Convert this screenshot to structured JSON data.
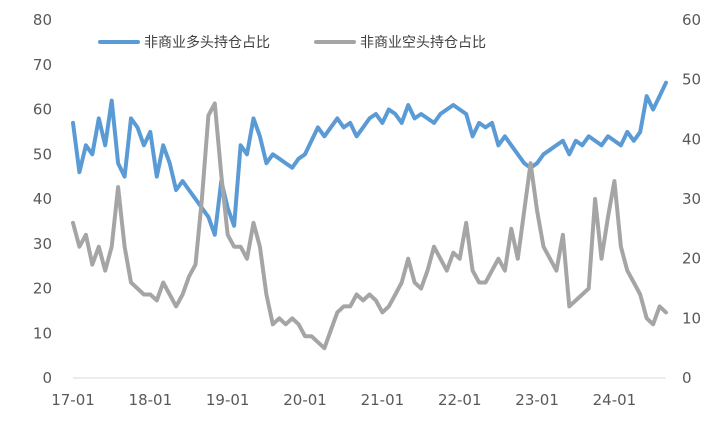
{
  "chart_data": {
    "type": "line",
    "title": "",
    "left_axis": {
      "ylim": [
        0,
        80
      ],
      "ticks": [
        "0",
        "10",
        "20",
        "30",
        "40",
        "50",
        "60",
        "70",
        "80"
      ]
    },
    "right_axis": {
      "ylim": [
        0,
        60
      ],
      "ticks": [
        "0",
        "10",
        "20",
        "30",
        "40",
        "50",
        "60"
      ]
    },
    "x_axis": {
      "xlim": [
        "2017-01",
        "2024-09"
      ],
      "ticks": [
        {
          "date": "2017-01",
          "label": "17-01"
        },
        {
          "date": "2018-01",
          "label": "18-01"
        },
        {
          "date": "2019-01",
          "label": "19-01"
        },
        {
          "date": "2020-01",
          "label": "20-01"
        },
        {
          "date": "2021-01",
          "label": "21-01"
        },
        {
          "date": "2022-01",
          "label": "22-01"
        },
        {
          "date": "2023-01",
          "label": "23-01"
        },
        {
          "date": "2024-01",
          "label": "24-01"
        }
      ]
    },
    "grid": false,
    "legend_position": "top-left",
    "series": [
      {
        "name": "非商业多头持仓占比",
        "axis": "left",
        "color": "#5B9BD5",
        "points": [
          [
            "2017-01",
            57
          ],
          [
            "2017-02",
            46
          ],
          [
            "2017-03",
            52
          ],
          [
            "2017-04",
            50
          ],
          [
            "2017-05",
            58
          ],
          [
            "2017-06",
            52
          ],
          [
            "2017-07",
            62
          ],
          [
            "2017-08",
            48
          ],
          [
            "2017-09",
            45
          ],
          [
            "2017-10",
            58
          ],
          [
            "2017-11",
            56
          ],
          [
            "2017-12",
            52
          ],
          [
            "2018-01",
            55
          ],
          [
            "2018-02",
            45
          ],
          [
            "2018-03",
            52
          ],
          [
            "2018-04",
            48
          ],
          [
            "2018-05",
            42
          ],
          [
            "2018-06",
            44
          ],
          [
            "2018-07",
            42
          ],
          [
            "2018-08",
            40
          ],
          [
            "2018-09",
            38
          ],
          [
            "2018-10",
            36
          ],
          [
            "2018-11",
            32
          ],
          [
            "2018-12",
            44
          ],
          [
            "2019-01",
            38
          ],
          [
            "2019-02",
            34
          ],
          [
            "2019-03",
            52
          ],
          [
            "2019-04",
            50
          ],
          [
            "2019-05",
            58
          ],
          [
            "2019-06",
            54
          ],
          [
            "2019-07",
            48
          ],
          [
            "2019-08",
            50
          ],
          [
            "2019-09",
            49
          ],
          [
            "2019-10",
            48
          ],
          [
            "2019-11",
            47
          ],
          [
            "2019-12",
            49
          ],
          [
            "2020-01",
            50
          ],
          [
            "2020-02",
            53
          ],
          [
            "2020-03",
            56
          ],
          [
            "2020-04",
            54
          ],
          [
            "2020-05",
            56
          ],
          [
            "2020-06",
            58
          ],
          [
            "2020-07",
            56
          ],
          [
            "2020-08",
            57
          ],
          [
            "2020-09",
            54
          ],
          [
            "2020-10",
            56
          ],
          [
            "2020-11",
            58
          ],
          [
            "2020-12",
            59
          ],
          [
            "2021-01",
            57
          ],
          [
            "2021-02",
            60
          ],
          [
            "2021-03",
            59
          ],
          [
            "2021-04",
            57
          ],
          [
            "2021-05",
            61
          ],
          [
            "2021-06",
            58
          ],
          [
            "2021-07",
            59
          ],
          [
            "2021-08",
            58
          ],
          [
            "2021-09",
            57
          ],
          [
            "2021-10",
            59
          ],
          [
            "2021-11",
            60
          ],
          [
            "2021-12",
            61
          ],
          [
            "2022-01",
            60
          ],
          [
            "2022-02",
            59
          ],
          [
            "2022-03",
            54
          ],
          [
            "2022-04",
            57
          ],
          [
            "2022-05",
            56
          ],
          [
            "2022-06",
            57
          ],
          [
            "2022-07",
            52
          ],
          [
            "2022-08",
            54
          ],
          [
            "2022-09",
            52
          ],
          [
            "2022-10",
            50
          ],
          [
            "2022-11",
            48
          ],
          [
            "2022-12",
            47
          ],
          [
            "2023-01",
            48
          ],
          [
            "2023-02",
            50
          ],
          [
            "2023-03",
            51
          ],
          [
            "2023-04",
            52
          ],
          [
            "2023-05",
            53
          ],
          [
            "2023-06",
            50
          ],
          [
            "2023-07",
            53
          ],
          [
            "2023-08",
            52
          ],
          [
            "2023-09",
            54
          ],
          [
            "2023-10",
            53
          ],
          [
            "2023-11",
            52
          ],
          [
            "2023-12",
            54
          ],
          [
            "2024-01",
            53
          ],
          [
            "2024-02",
            52
          ],
          [
            "2024-03",
            55
          ],
          [
            "2024-04",
            53
          ],
          [
            "2024-05",
            55
          ],
          [
            "2024-06",
            63
          ],
          [
            "2024-07",
            60
          ],
          [
            "2024-08",
            63
          ],
          [
            "2024-09",
            66
          ]
        ]
      },
      {
        "name": "非商业空头持仓占比",
        "axis": "right",
        "color": "#A5A5A5",
        "points": [
          [
            "2017-01",
            26
          ],
          [
            "2017-02",
            22
          ],
          [
            "2017-03",
            24
          ],
          [
            "2017-04",
            19
          ],
          [
            "2017-05",
            22
          ],
          [
            "2017-06",
            18
          ],
          [
            "2017-07",
            22
          ],
          [
            "2017-08",
            32
          ],
          [
            "2017-09",
            22
          ],
          [
            "2017-10",
            16
          ],
          [
            "2017-11",
            15
          ],
          [
            "2017-12",
            14
          ],
          [
            "2018-01",
            14
          ],
          [
            "2018-02",
            13
          ],
          [
            "2018-03",
            16
          ],
          [
            "2018-04",
            14
          ],
          [
            "2018-05",
            12
          ],
          [
            "2018-06",
            14
          ],
          [
            "2018-07",
            17
          ],
          [
            "2018-08",
            19
          ],
          [
            "2018-09",
            30
          ],
          [
            "2018-10",
            44
          ],
          [
            "2018-11",
            46
          ],
          [
            "2018-12",
            34
          ],
          [
            "2019-01",
            24
          ],
          [
            "2019-02",
            22
          ],
          [
            "2019-03",
            22
          ],
          [
            "2019-04",
            20
          ],
          [
            "2019-05",
            26
          ],
          [
            "2019-06",
            22
          ],
          [
            "2019-07",
            14
          ],
          [
            "2019-08",
            9
          ],
          [
            "2019-09",
            10
          ],
          [
            "2019-10",
            9
          ],
          [
            "2019-11",
            10
          ],
          [
            "2019-12",
            9
          ],
          [
            "2020-01",
            7
          ],
          [
            "2020-02",
            7
          ],
          [
            "2020-03",
            6
          ],
          [
            "2020-04",
            5
          ],
          [
            "2020-05",
            8
          ],
          [
            "2020-06",
            11
          ],
          [
            "2020-07",
            12
          ],
          [
            "2020-08",
            12
          ],
          [
            "2020-09",
            14
          ],
          [
            "2020-10",
            13
          ],
          [
            "2020-11",
            14
          ],
          [
            "2020-12",
            13
          ],
          [
            "2021-01",
            11
          ],
          [
            "2021-02",
            12
          ],
          [
            "2021-03",
            14
          ],
          [
            "2021-04",
            16
          ],
          [
            "2021-05",
            20
          ],
          [
            "2021-06",
            16
          ],
          [
            "2021-07",
            15
          ],
          [
            "2021-08",
            18
          ],
          [
            "2021-09",
            22
          ],
          [
            "2021-10",
            20
          ],
          [
            "2021-11",
            18
          ],
          [
            "2021-12",
            21
          ],
          [
            "2022-01",
            20
          ],
          [
            "2022-02",
            26
          ],
          [
            "2022-03",
            18
          ],
          [
            "2022-04",
            16
          ],
          [
            "2022-05",
            16
          ],
          [
            "2022-06",
            18
          ],
          [
            "2022-07",
            20
          ],
          [
            "2022-08",
            18
          ],
          [
            "2022-09",
            25
          ],
          [
            "2022-10",
            20
          ],
          [
            "2022-11",
            28
          ],
          [
            "2022-12",
            36
          ],
          [
            "2023-01",
            28
          ],
          [
            "2023-02",
            22
          ],
          [
            "2023-03",
            20
          ],
          [
            "2023-04",
            18
          ],
          [
            "2023-05",
            24
          ],
          [
            "2023-06",
            12
          ],
          [
            "2023-07",
            13
          ],
          [
            "2023-08",
            14
          ],
          [
            "2023-09",
            15
          ],
          [
            "2023-10",
            30
          ],
          [
            "2023-11",
            20
          ],
          [
            "2023-12",
            27
          ],
          [
            "2024-01",
            33
          ],
          [
            "2024-02",
            22
          ],
          [
            "2024-03",
            18
          ],
          [
            "2024-04",
            16
          ],
          [
            "2024-05",
            14
          ],
          [
            "2024-06",
            10
          ],
          [
            "2024-07",
            9
          ],
          [
            "2024-08",
            12
          ],
          [
            "2024-09",
            11
          ]
        ]
      }
    ]
  }
}
